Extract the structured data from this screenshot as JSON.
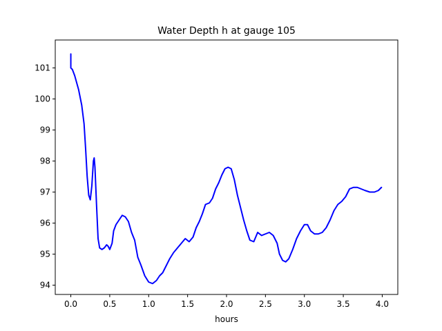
{
  "chart_data": {
    "type": "line",
    "title": "Water Depth h at gauge 105",
    "xlabel": "hours",
    "ylabel": "",
    "xlim": [
      -0.2,
      4.2
    ],
    "ylim": [
      93.7,
      101.9
    ],
    "xticks": [
      0.0,
      0.5,
      1.0,
      1.5,
      2.0,
      2.5,
      3.0,
      3.5,
      4.0
    ],
    "xtick_labels": [
      "0.0",
      "0.5",
      "1.0",
      "1.5",
      "2.0",
      "2.5",
      "3.0",
      "3.5",
      "4.0"
    ],
    "yticks": [
      94,
      95,
      96,
      97,
      98,
      99,
      100,
      101
    ],
    "ytick_labels": [
      "94",
      "95",
      "96",
      "97",
      "98",
      "99",
      "100",
      "101"
    ],
    "grid": false,
    "series": [
      {
        "color": "#0000ff",
        "x": [
          0.0,
          0.0,
          0.02,
          0.05,
          0.1,
          0.14,
          0.17,
          0.19,
          0.21,
          0.23,
          0.25,
          0.27,
          0.29,
          0.3,
          0.31,
          0.33,
          0.35,
          0.37,
          0.4,
          0.43,
          0.46,
          0.48,
          0.5,
          0.53,
          0.55,
          0.58,
          0.62,
          0.66,
          0.7,
          0.74,
          0.78,
          0.82,
          0.86,
          0.9,
          0.95,
          1.0,
          1.05,
          1.1,
          1.14,
          1.18,
          1.22,
          1.27,
          1.32,
          1.37,
          1.42,
          1.47,
          1.52,
          1.57,
          1.61,
          1.65,
          1.69,
          1.73,
          1.78,
          1.82,
          1.86,
          1.9,
          1.94,
          1.98,
          2.02,
          2.06,
          2.1,
          2.14,
          2.18,
          2.22,
          2.26,
          2.3,
          2.35,
          2.4,
          2.45,
          2.5,
          2.55,
          2.6,
          2.65,
          2.68,
          2.72,
          2.76,
          2.8,
          2.85,
          2.9,
          2.95,
          3.0,
          3.04,
          3.08,
          3.13,
          3.18,
          3.23,
          3.28,
          3.33,
          3.38,
          3.43,
          3.48,
          3.53,
          3.58,
          3.63,
          3.68,
          3.73,
          3.78,
          3.84,
          3.9,
          3.95,
          3.99
        ],
        "y": [
          101.45,
          101.0,
          100.95,
          100.75,
          100.3,
          99.8,
          99.2,
          98.4,
          97.5,
          96.9,
          96.75,
          97.2,
          98.0,
          98.1,
          97.8,
          96.6,
          95.5,
          95.2,
          95.15,
          95.2,
          95.3,
          95.25,
          95.15,
          95.35,
          95.75,
          95.95,
          96.1,
          96.25,
          96.2,
          96.05,
          95.7,
          95.45,
          94.9,
          94.65,
          94.3,
          94.1,
          94.05,
          94.15,
          94.3,
          94.4,
          94.6,
          94.85,
          95.05,
          95.2,
          95.35,
          95.5,
          95.4,
          95.55,
          95.85,
          96.05,
          96.3,
          96.6,
          96.65,
          96.8,
          97.1,
          97.3,
          97.55,
          97.75,
          97.8,
          97.75,
          97.4,
          96.9,
          96.5,
          96.1,
          95.75,
          95.45,
          95.4,
          95.7,
          95.6,
          95.65,
          95.7,
          95.6,
          95.35,
          95.0,
          94.8,
          94.75,
          94.85,
          95.15,
          95.5,
          95.75,
          95.95,
          95.95,
          95.75,
          95.65,
          95.65,
          95.7,
          95.85,
          96.1,
          96.4,
          96.6,
          96.7,
          96.85,
          97.1,
          97.15,
          97.15,
          97.1,
          97.05,
          97.0,
          97.0,
          97.05,
          97.15
        ]
      }
    ]
  }
}
